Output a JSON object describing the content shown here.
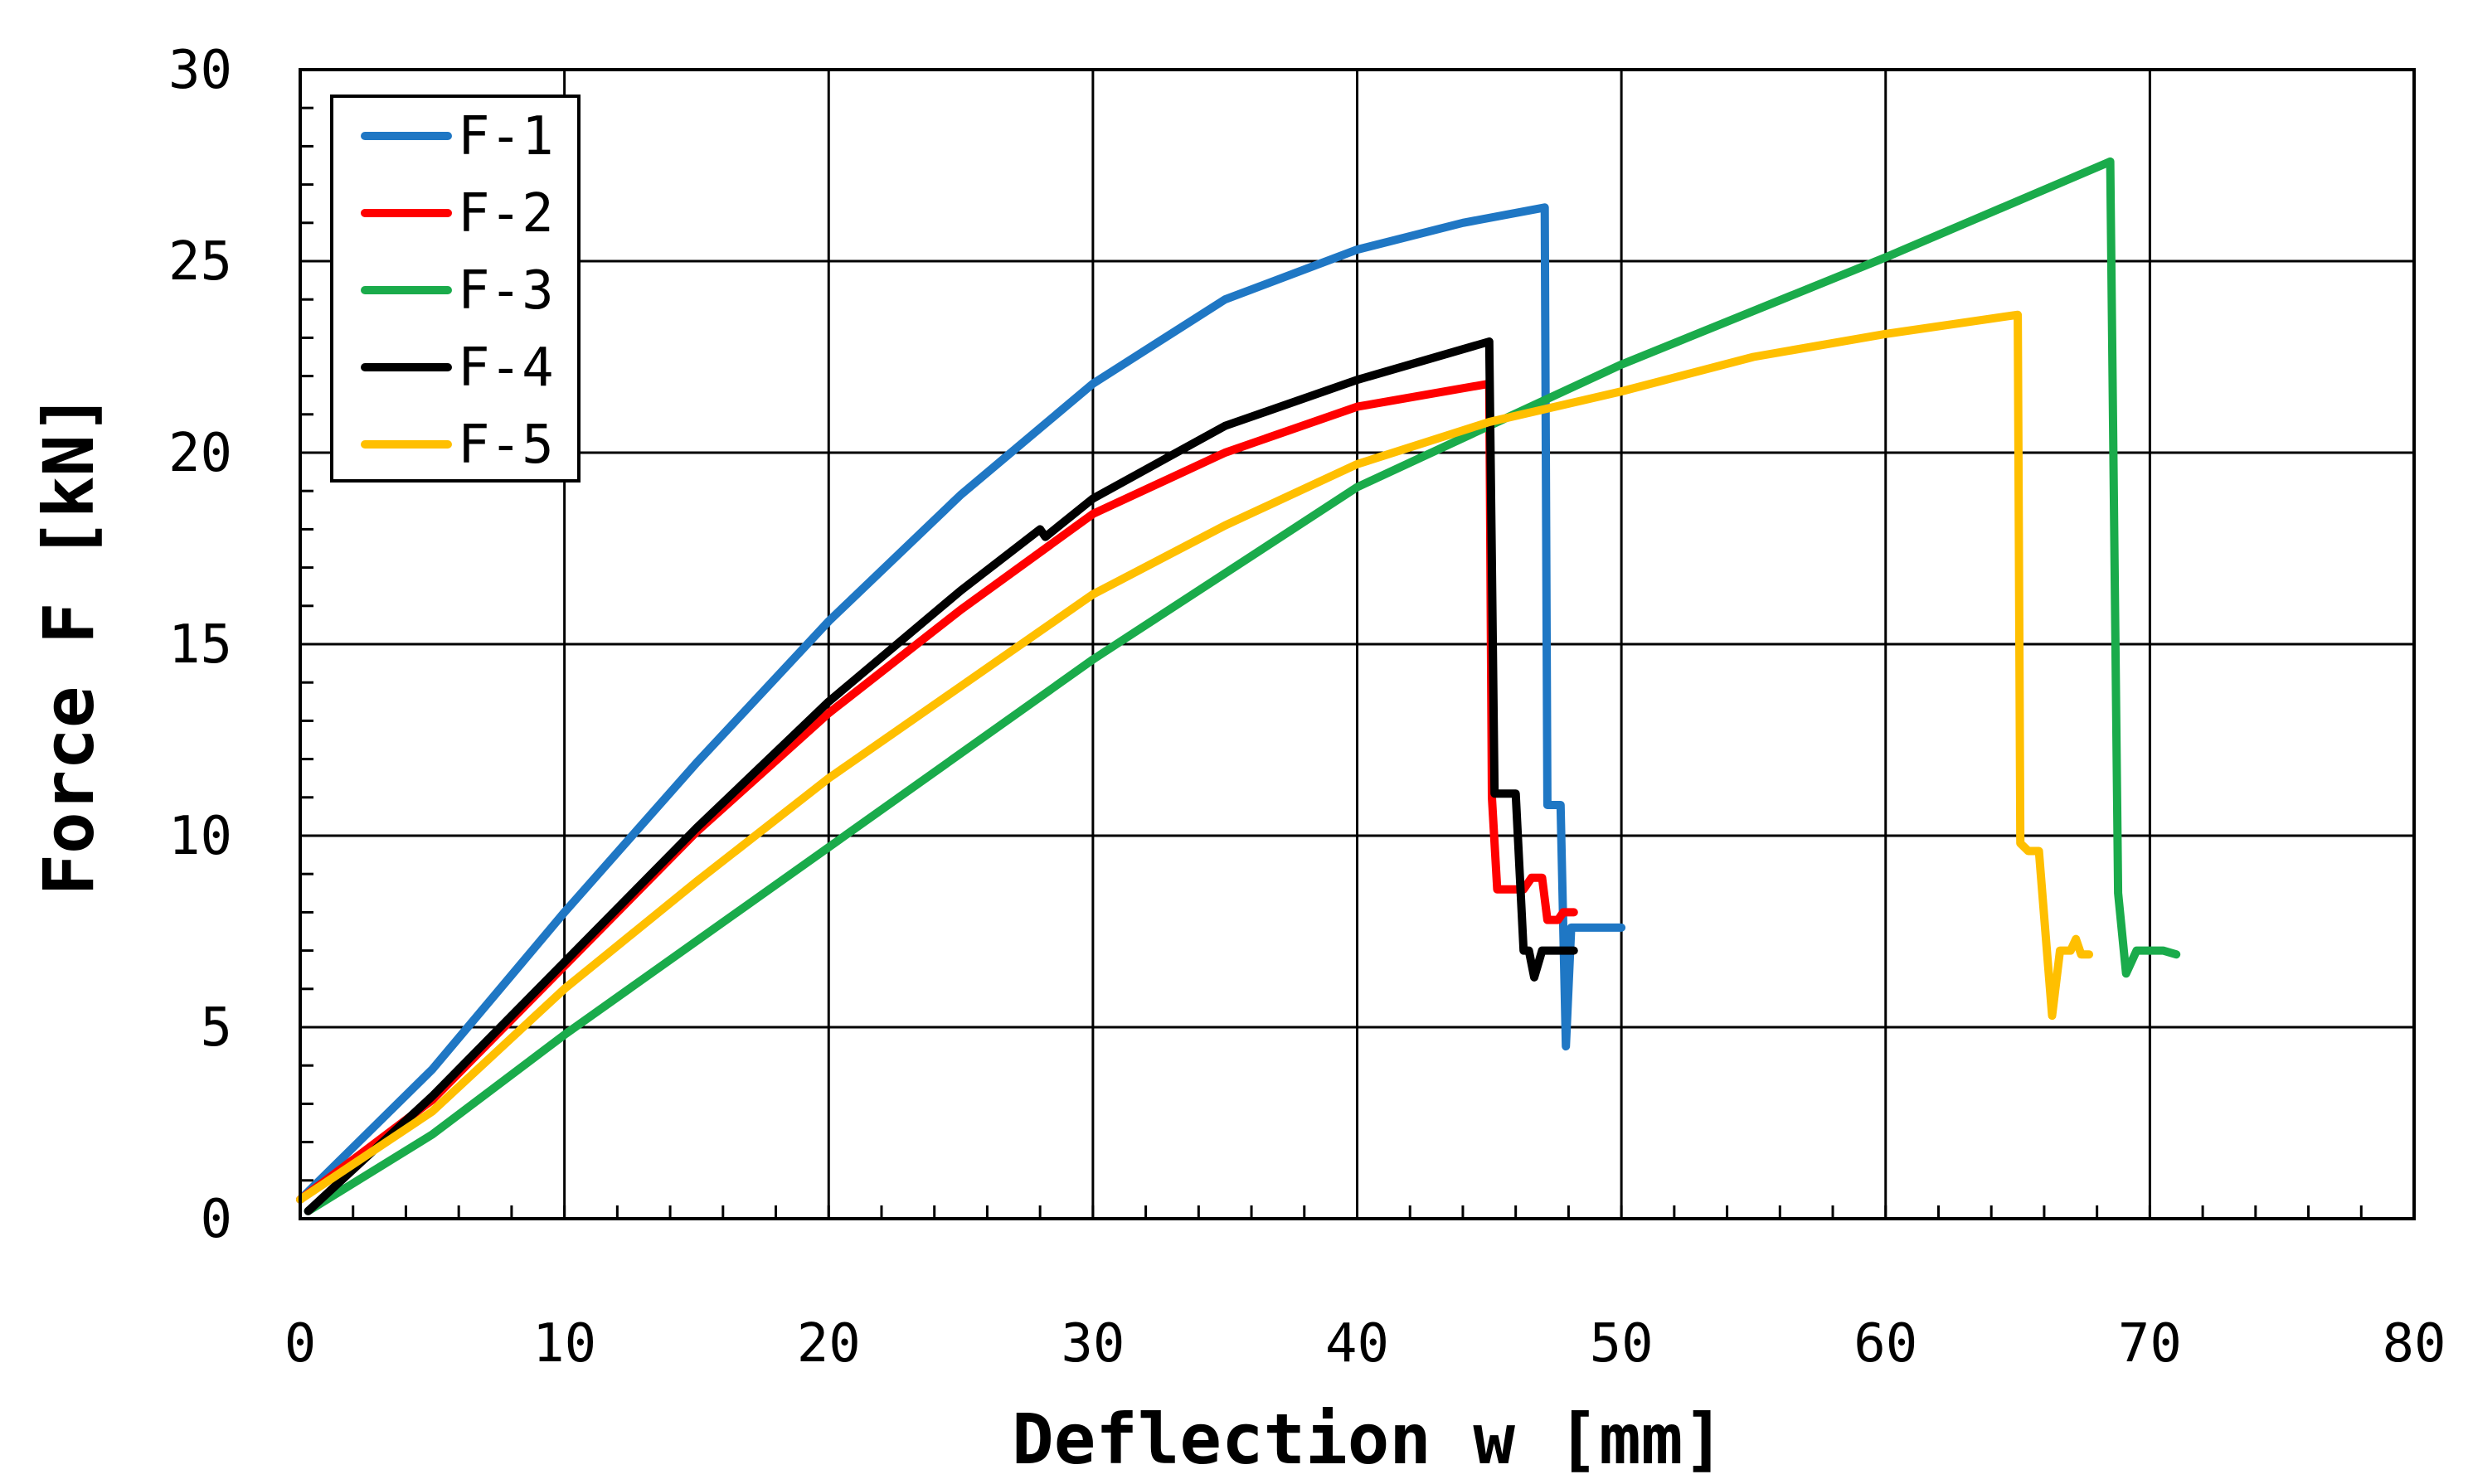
{
  "chart_data": {
    "type": "line",
    "title": "",
    "xlabel": "Deflection w [mm]",
    "ylabel": "Force F [kN]",
    "xlim": [
      0,
      80
    ],
    "ylim": [
      0,
      30
    ],
    "xticks": [
      0,
      10,
      20,
      30,
      40,
      50,
      60,
      70,
      80
    ],
    "yticks": [
      0,
      5,
      10,
      15,
      20,
      25,
      30
    ],
    "x_tick_labels": [
      "0",
      "10",
      "20",
      "30",
      "40",
      "50",
      "60",
      "70",
      "80"
    ],
    "y_tick_labels": [
      "0",
      "5",
      "10",
      "15",
      "20",
      "25",
      "30"
    ],
    "grid": true,
    "legend_position": "top-left",
    "series": [
      {
        "name": "F-1",
        "color": "#1f77c4",
        "points": [
          [
            0,
            0.5
          ],
          [
            5,
            3.9
          ],
          [
            10,
            8.0
          ],
          [
            15,
            11.9
          ],
          [
            20,
            15.6
          ],
          [
            25,
            18.9
          ],
          [
            30,
            21.8
          ],
          [
            35,
            24.0
          ],
          [
            40,
            25.3
          ],
          [
            44,
            26.0
          ],
          [
            47.1,
            26.4
          ],
          [
            47.2,
            10.8
          ],
          [
            47.7,
            10.8
          ],
          [
            47.9,
            4.5
          ],
          [
            48.1,
            7.6
          ],
          [
            50,
            7.6
          ]
        ]
      },
      {
        "name": "F-2",
        "color": "#ff0000",
        "points": [
          [
            0,
            0.5
          ],
          [
            5,
            3.1
          ],
          [
            10,
            6.6
          ],
          [
            15,
            10.1
          ],
          [
            20,
            13.2
          ],
          [
            25,
            15.9
          ],
          [
            30,
            18.4
          ],
          [
            35,
            20.0
          ],
          [
            40,
            21.2
          ],
          [
            45,
            21.8
          ],
          [
            45.1,
            11.0
          ],
          [
            45.3,
            8.6
          ],
          [
            46.3,
            8.6
          ],
          [
            46.6,
            8.9
          ],
          [
            47.0,
            8.9
          ],
          [
            47.2,
            7.8
          ],
          [
            47.6,
            7.8
          ],
          [
            47.8,
            8.0
          ],
          [
            48.2,
            8.0
          ]
        ]
      },
      {
        "name": "F-3",
        "color": "#1aab4b",
        "points": [
          [
            0.3,
            0.2
          ],
          [
            5,
            2.2
          ],
          [
            10,
            4.8
          ],
          [
            20,
            9.7
          ],
          [
            30,
            14.6
          ],
          [
            40,
            19.1
          ],
          [
            50,
            22.3
          ],
          [
            60,
            25.1
          ],
          [
            68.5,
            27.6
          ],
          [
            68.8,
            8.5
          ],
          [
            69.1,
            6.4
          ],
          [
            69.5,
            7.0
          ],
          [
            70.5,
            7.0
          ],
          [
            71,
            6.9
          ]
        ]
      },
      {
        "name": "F-4",
        "color": "#000000",
        "points": [
          [
            0.3,
            0.2
          ],
          [
            5,
            3.2
          ],
          [
            10,
            6.7
          ],
          [
            15,
            10.2
          ],
          [
            20,
            13.5
          ],
          [
            25,
            16.4
          ],
          [
            28,
            18.0
          ],
          [
            28.2,
            17.8
          ],
          [
            30,
            18.8
          ],
          [
            35,
            20.7
          ],
          [
            40,
            21.9
          ],
          [
            45,
            22.9
          ],
          [
            45.2,
            11.1
          ],
          [
            46,
            11.1
          ],
          [
            46.3,
            7.0
          ],
          [
            46.5,
            7.0
          ],
          [
            46.7,
            6.3
          ],
          [
            47,
            7.0
          ],
          [
            48.2,
            7.0
          ]
        ]
      },
      {
        "name": "F-5",
        "color": "#ffbf00",
        "points": [
          [
            0,
            0.5
          ],
          [
            5,
            2.8
          ],
          [
            10,
            6.0
          ],
          [
            15,
            8.8
          ],
          [
            20,
            11.5
          ],
          [
            25,
            13.9
          ],
          [
            30,
            16.3
          ],
          [
            35,
            18.1
          ],
          [
            40,
            19.7
          ],
          [
            45,
            20.8
          ],
          [
            50,
            21.6
          ],
          [
            55,
            22.5
          ],
          [
            60,
            23.1
          ],
          [
            65,
            23.6
          ],
          [
            65.1,
            9.8
          ],
          [
            65.4,
            9.6
          ],
          [
            65.8,
            9.6
          ],
          [
            66.3,
            5.3
          ],
          [
            66.6,
            7.0
          ],
          [
            67.0,
            7.0
          ],
          [
            67.2,
            7.3
          ],
          [
            67.4,
            6.9
          ],
          [
            67.7,
            6.9
          ]
        ]
      }
    ]
  }
}
